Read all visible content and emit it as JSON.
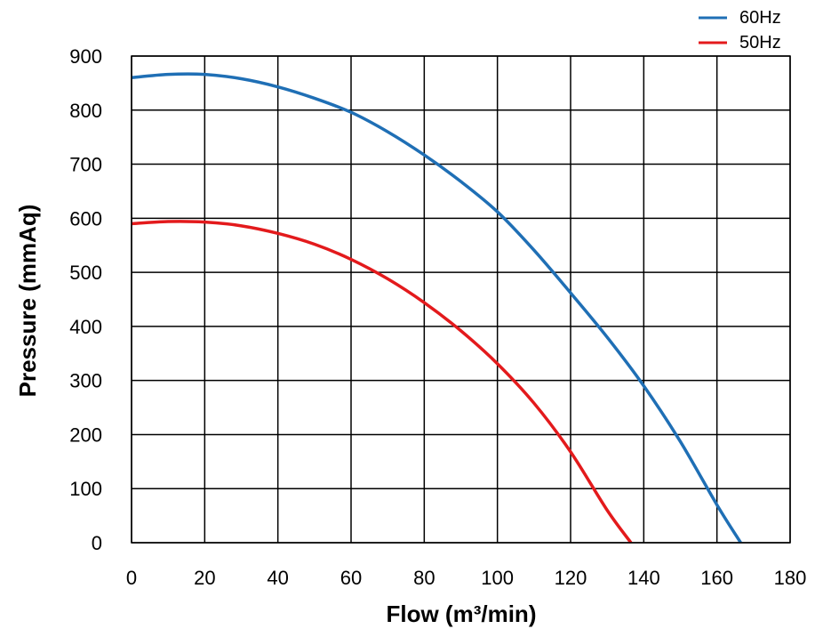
{
  "chart_data": {
    "type": "line",
    "xlabel": "Flow (m³/min)",
    "ylabel": "Pressure (mmAq)",
    "xlim": [
      0,
      180
    ],
    "ylim": [
      0,
      900
    ],
    "x_ticks": [
      "0",
      "20",
      "40",
      "60",
      "80",
      "100",
      "120",
      "140",
      "160",
      "180"
    ],
    "y_ticks": [
      "0",
      "100",
      "200",
      "300",
      "400",
      "500",
      "600",
      "700",
      "800",
      "900"
    ],
    "grid": true,
    "legend_position": "top-right",
    "series": [
      {
        "name": "60Hz",
        "color": "#1f6fb5",
        "points": [
          [
            0,
            860
          ],
          [
            10,
            866
          ],
          [
            20,
            866
          ],
          [
            30,
            858
          ],
          [
            40,
            843
          ],
          [
            50,
            822
          ],
          [
            60,
            796
          ],
          [
            70,
            760
          ],
          [
            80,
            717
          ],
          [
            90,
            668
          ],
          [
            100,
            612
          ],
          [
            110,
            541
          ],
          [
            120,
            462
          ],
          [
            130,
            380
          ],
          [
            140,
            290
          ],
          [
            150,
            187
          ],
          [
            160,
            70
          ],
          [
            166.5,
            0
          ]
        ]
      },
      {
        "name": "50Hz",
        "color": "#e31a1c",
        "points": [
          [
            0,
            590
          ],
          [
            10,
            594
          ],
          [
            20,
            593
          ],
          [
            30,
            586
          ],
          [
            40,
            572
          ],
          [
            50,
            552
          ],
          [
            60,
            524
          ],
          [
            70,
            488
          ],
          [
            80,
            444
          ],
          [
            90,
            392
          ],
          [
            100,
            331
          ],
          [
            110,
            258
          ],
          [
            120,
            168
          ],
          [
            130,
            60
          ],
          [
            136.5,
            0
          ]
        ]
      }
    ]
  }
}
